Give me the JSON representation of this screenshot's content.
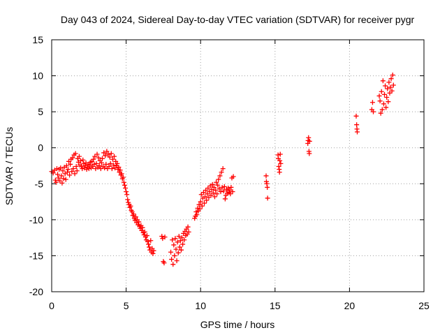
{
  "chart_data": {
    "type": "scatter",
    "title": "Day 043 of 2024, Sidereal Day-to-day VTEC variation (SDTVAR) for receiver pygr",
    "xlabel": "GPS time / hours",
    "ylabel": "SDTVAR / TECUs",
    "xlim": [
      0,
      25
    ],
    "ylim": [
      -20,
      15
    ],
    "xticks": [
      0,
      5,
      10,
      15,
      20,
      25
    ],
    "yticks": [
      -20,
      -15,
      -10,
      -5,
      0,
      5,
      10,
      15
    ],
    "xtick_labels": [
      "0",
      "5",
      "10",
      "15",
      "20",
      "25"
    ],
    "ytick_labels": [
      "-20",
      "-15",
      "-10",
      "-5",
      "0",
      "5",
      "10",
      "15"
    ],
    "grid": true,
    "marker": "+",
    "series": [
      {
        "name": "SDTVAR",
        "color": "#ff0000",
        "points": [
          [
            0.0,
            -3.3
          ],
          [
            0.1,
            -3.5
          ],
          [
            0.2,
            -3.1
          ],
          [
            0.25,
            -4.5
          ],
          [
            0.3,
            -4.8
          ],
          [
            0.35,
            -2.9
          ],
          [
            0.4,
            -3.7
          ],
          [
            0.45,
            -4.2
          ],
          [
            0.5,
            -3.0
          ],
          [
            0.55,
            -4.6
          ],
          [
            0.6,
            -2.8
          ],
          [
            0.65,
            -3.9
          ],
          [
            0.7,
            -4.9
          ],
          [
            0.75,
            -3.2
          ],
          [
            0.8,
            -4.3
          ],
          [
            0.85,
            -2.7
          ],
          [
            0.9,
            -3.6
          ],
          [
            0.95,
            -4.4
          ],
          [
            1.0,
            -2.5
          ],
          [
            1.05,
            -3.4
          ],
          [
            1.1,
            -3.0
          ],
          [
            1.15,
            -1.9
          ],
          [
            1.2,
            -3.8
          ],
          [
            1.25,
            -2.3
          ],
          [
            1.3,
            -1.6
          ],
          [
            1.35,
            -3.3
          ],
          [
            1.4,
            -1.4
          ],
          [
            1.45,
            -2.9
          ],
          [
            1.5,
            -1.0
          ],
          [
            1.55,
            -3.6
          ],
          [
            1.6,
            -0.8
          ],
          [
            1.65,
            -2.6
          ],
          [
            1.7,
            -3.2
          ],
          [
            1.75,
            -1.5
          ],
          [
            1.8,
            -2.0
          ],
          [
            1.85,
            -1.2
          ],
          [
            1.9,
            -2.4
          ],
          [
            1.95,
            -1.8
          ],
          [
            2.0,
            -2.6
          ],
          [
            2.05,
            -2.9
          ],
          [
            2.1,
            -1.7
          ],
          [
            2.15,
            -2.2
          ],
          [
            2.2,
            -2.8
          ],
          [
            2.25,
            -2.5
          ],
          [
            2.3,
            -2.1
          ],
          [
            2.35,
            -3.0
          ],
          [
            2.4,
            -2.7
          ],
          [
            2.45,
            -2.3
          ],
          [
            2.5,
            -2.9
          ],
          [
            2.55,
            -2.4
          ],
          [
            2.6,
            -2.0
          ],
          [
            2.65,
            -2.8
          ],
          [
            2.7,
            -1.9
          ],
          [
            2.75,
            -2.6
          ],
          [
            2.8,
            -1.6
          ],
          [
            2.85,
            -2.3
          ],
          [
            2.9,
            -1.2
          ],
          [
            2.95,
            -2.9
          ],
          [
            3.0,
            -2.2
          ],
          [
            3.05,
            -0.9
          ],
          [
            3.1,
            -2.7
          ],
          [
            3.15,
            -1.4
          ],
          [
            3.2,
            -2.5
          ],
          [
            3.25,
            -1.8
          ],
          [
            3.3,
            -2.9
          ],
          [
            3.35,
            -2.1
          ],
          [
            3.4,
            -1.5
          ],
          [
            3.45,
            -2.6
          ],
          [
            3.5,
            -0.7
          ],
          [
            3.55,
            -2.8
          ],
          [
            3.6,
            -1.1
          ],
          [
            3.65,
            -2.3
          ],
          [
            3.7,
            -0.5
          ],
          [
            3.75,
            -2.9
          ],
          [
            3.8,
            -0.9
          ],
          [
            3.85,
            -2.6
          ],
          [
            3.9,
            -1.3
          ],
          [
            3.95,
            -2.2
          ],
          [
            4.0,
            -0.8
          ],
          [
            4.05,
            -2.9
          ],
          [
            4.1,
            -1.6
          ],
          [
            4.15,
            -2.4
          ],
          [
            4.2,
            -1.2
          ],
          [
            4.25,
            -2.8
          ],
          [
            4.3,
            -1.9
          ],
          [
            4.35,
            -2.5
          ],
          [
            4.4,
            -2.2
          ],
          [
            4.45,
            -3.0
          ],
          [
            4.5,
            -2.7
          ],
          [
            4.55,
            -3.4
          ],
          [
            4.6,
            -3.1
          ],
          [
            4.65,
            -3.8
          ],
          [
            4.7,
            -3.6
          ],
          [
            4.75,
            -4.3
          ],
          [
            4.8,
            -4.1
          ],
          [
            4.85,
            -4.8
          ],
          [
            4.9,
            -5.2
          ],
          [
            4.95,
            -5.6
          ],
          [
            5.0,
            -6.1
          ],
          [
            5.05,
            -6.5
          ],
          [
            5.1,
            -7.2
          ],
          [
            5.15,
            -7.6
          ],
          [
            5.2,
            -7.9
          ],
          [
            5.25,
            -8.3
          ],
          [
            5.3,
            -8.1
          ],
          [
            5.35,
            -8.7
          ],
          [
            5.4,
            -8.9
          ],
          [
            5.45,
            -9.4
          ],
          [
            5.5,
            -9.2
          ],
          [
            5.55,
            -9.8
          ],
          [
            5.6,
            -10.1
          ],
          [
            5.65,
            -9.6
          ],
          [
            5.7,
            -10.4
          ],
          [
            5.75,
            -10.0
          ],
          [
            5.8,
            -10.7
          ],
          [
            5.85,
            -10.3
          ],
          [
            5.9,
            -10.9
          ],
          [
            5.95,
            -11.2
          ],
          [
            6.0,
            -10.8
          ],
          [
            6.05,
            -11.5
          ],
          [
            6.1,
            -11.1
          ],
          [
            6.15,
            -11.8
          ],
          [
            6.2,
            -12.1
          ],
          [
            6.25,
            -11.7
          ],
          [
            6.3,
            -12.4
          ],
          [
            6.35,
            -12.8
          ],
          [
            6.4,
            -12.2
          ],
          [
            6.45,
            -13.0
          ],
          [
            6.5,
            -13.4
          ],
          [
            6.55,
            -13.8
          ],
          [
            6.6,
            -14.2
          ],
          [
            6.65,
            -12.9
          ],
          [
            6.7,
            -14.5
          ],
          [
            6.75,
            -14.0
          ],
          [
            6.8,
            -14.7
          ],
          [
            6.85,
            -14.3
          ],
          [
            7.4,
            -12.3
          ],
          [
            7.45,
            -12.6
          ],
          [
            7.5,
            -15.8
          ],
          [
            7.55,
            -16.0
          ],
          [
            7.6,
            -12.4
          ],
          [
            8.0,
            -14.5
          ],
          [
            8.05,
            -15.5
          ],
          [
            8.1,
            -12.8
          ],
          [
            8.15,
            -16.2
          ],
          [
            8.2,
            -13.5
          ],
          [
            8.25,
            -15.0
          ],
          [
            8.3,
            -12.6
          ],
          [
            8.35,
            -14.1
          ],
          [
            8.4,
            -15.7
          ],
          [
            8.45,
            -13.1
          ],
          [
            8.5,
            -14.6
          ],
          [
            8.55,
            -12.3
          ],
          [
            8.6,
            -13.8
          ],
          [
            8.65,
            -12.9
          ],
          [
            8.7,
            -14.2
          ],
          [
            8.75,
            -12.5
          ],
          [
            8.8,
            -13.4
          ],
          [
            8.85,
            -11.9
          ],
          [
            8.9,
            -12.8
          ],
          [
            8.95,
            -11.6
          ],
          [
            9.0,
            -12.2
          ],
          [
            9.05,
            -11.3
          ],
          [
            9.1,
            -12.0
          ],
          [
            9.15,
            -11.0
          ],
          [
            9.2,
            -11.7
          ],
          [
            9.6,
            -9.8
          ],
          [
            9.65,
            -9.5
          ],
          [
            9.7,
            -8.9
          ],
          [
            9.75,
            -9.3
          ],
          [
            9.8,
            -8.4
          ],
          [
            9.85,
            -8.8
          ],
          [
            9.9,
            -7.9
          ],
          [
            9.95,
            -8.5
          ],
          [
            10.0,
            -7.5
          ],
          [
            10.05,
            -6.5
          ],
          [
            10.1,
            -8.1
          ],
          [
            10.15,
            -7.0
          ],
          [
            10.2,
            -6.2
          ],
          [
            10.25,
            -7.7
          ],
          [
            10.3,
            -6.8
          ],
          [
            10.35,
            -5.9
          ],
          [
            10.4,
            -7.3
          ],
          [
            10.45,
            -6.4
          ],
          [
            10.5,
            -5.6
          ],
          [
            10.55,
            -6.9
          ],
          [
            10.6,
            -6.1
          ],
          [
            10.65,
            -5.3
          ],
          [
            10.7,
            -6.6
          ],
          [
            10.75,
            -5.8
          ],
          [
            10.8,
            -5.1
          ],
          [
            10.85,
            -6.3
          ],
          [
            10.9,
            -5.5
          ],
          [
            10.95,
            -6.8
          ],
          [
            11.0,
            -5.9
          ],
          [
            11.05,
            -4.8
          ],
          [
            11.1,
            -6.4
          ],
          [
            11.15,
            -5.2
          ],
          [
            11.2,
            -4.4
          ],
          [
            11.25,
            -5.7
          ],
          [
            11.3,
            -3.9
          ],
          [
            11.35,
            -6.1
          ],
          [
            11.4,
            -3.4
          ],
          [
            11.45,
            -5.5
          ],
          [
            11.5,
            -2.9
          ],
          [
            11.55,
            -6.0
          ],
          [
            11.6,
            -5.4
          ],
          [
            11.65,
            -7.1
          ],
          [
            11.7,
            -6.6
          ],
          [
            11.75,
            -5.8
          ],
          [
            11.8,
            -6.3
          ],
          [
            11.85,
            -5.6
          ],
          [
            11.9,
            -6.2
          ],
          [
            11.95,
            -5.9
          ],
          [
            12.0,
            -6.4
          ],
          [
            12.05,
            -5.5
          ],
          [
            12.1,
            -4.2
          ],
          [
            12.15,
            -6.1
          ],
          [
            12.2,
            -4.0
          ],
          [
            14.4,
            -3.9
          ],
          [
            14.42,
            -4.7
          ],
          [
            14.45,
            -5.0
          ],
          [
            14.48,
            -5.5
          ],
          [
            14.5,
            -7.0
          ],
          [
            15.2,
            -1.0
          ],
          [
            15.22,
            -1.5
          ],
          [
            15.25,
            -2.6
          ],
          [
            15.28,
            -3.0
          ],
          [
            15.3,
            -3.4
          ],
          [
            15.32,
            -1.8
          ],
          [
            15.35,
            -0.9
          ],
          [
            15.38,
            -2.2
          ],
          [
            17.2,
            0.6
          ],
          [
            17.22,
            1.0
          ],
          [
            17.25,
            1.4
          ],
          [
            17.28,
            -0.5
          ],
          [
            17.3,
            -0.8
          ],
          [
            17.32,
            0.9
          ],
          [
            20.45,
            4.4
          ],
          [
            20.48,
            3.2
          ],
          [
            20.5,
            2.6
          ],
          [
            20.52,
            2.2
          ],
          [
            21.5,
            5.3
          ],
          [
            21.55,
            6.3
          ],
          [
            21.6,
            5.0
          ],
          [
            22.0,
            7.2
          ],
          [
            22.05,
            6.5
          ],
          [
            22.1,
            4.8
          ],
          [
            22.15,
            7.8
          ],
          [
            22.2,
            5.3
          ],
          [
            22.25,
            9.3
          ],
          [
            22.3,
            6.1
          ],
          [
            22.35,
            7.4
          ],
          [
            22.4,
            8.6
          ],
          [
            22.45,
            5.6
          ],
          [
            22.5,
            7.0
          ],
          [
            22.55,
            8.2
          ],
          [
            22.6,
            6.4
          ],
          [
            22.65,
            9.1
          ],
          [
            22.7,
            7.6
          ],
          [
            22.75,
            8.4
          ],
          [
            22.8,
            9.6
          ],
          [
            22.85,
            7.9
          ],
          [
            22.9,
            10.1
          ],
          [
            22.95,
            8.7
          ]
        ]
      }
    ]
  }
}
